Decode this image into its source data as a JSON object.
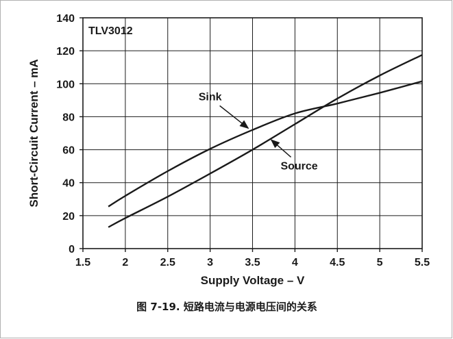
{
  "caption": "图 7-19. 短路电流与电源电压间的关系",
  "chart_data": {
    "type": "line",
    "xlabel": "Supply Voltage – V",
    "ylabel": "Short-Circuit Current – mA",
    "xlim": [
      1.5,
      5.5
    ],
    "ylim": [
      0,
      140
    ],
    "xticks": [
      1.5,
      2,
      2.5,
      3,
      3.5,
      4,
      4.5,
      5,
      5.5
    ],
    "xtick_labels": [
      "1.5",
      "2",
      "2.5",
      "3",
      "3.5",
      "4",
      "4.5",
      "5",
      "5.5"
    ],
    "yticks": [
      0,
      20,
      40,
      60,
      80,
      100,
      120,
      140
    ],
    "ytick_labels": [
      "0",
      "20",
      "40",
      "60",
      "80",
      "100",
      "120",
      "140"
    ],
    "grid": true,
    "annotations": [
      {
        "text": "TLV3012"
      },
      {
        "text": "Sink",
        "x": 3.0,
        "y": 90,
        "arrow_to": [
          3.45,
          73
        ]
      },
      {
        "text": "Source",
        "x": 4.05,
        "y": 48,
        "arrow_to": [
          3.72,
          66
        ]
      }
    ],
    "series": [
      {
        "name": "Sink",
        "x": [
          1.8,
          2.0,
          2.5,
          3.0,
          3.5,
          4.0,
          4.5,
          5.0,
          5.5
        ],
        "y": [
          25.5,
          32,
          47,
          60.5,
          72,
          82,
          88,
          94.5,
          101.5
        ]
      },
      {
        "name": "Source",
        "x": [
          1.8,
          2.0,
          2.5,
          3.0,
          3.5,
          4.0,
          4.5,
          5.0,
          5.5
        ],
        "y": [
          13,
          18.5,
          31.5,
          45.5,
          60,
          75.5,
          91,
          105,
          117.5
        ]
      }
    ],
    "color": "#1a1a1a"
  }
}
